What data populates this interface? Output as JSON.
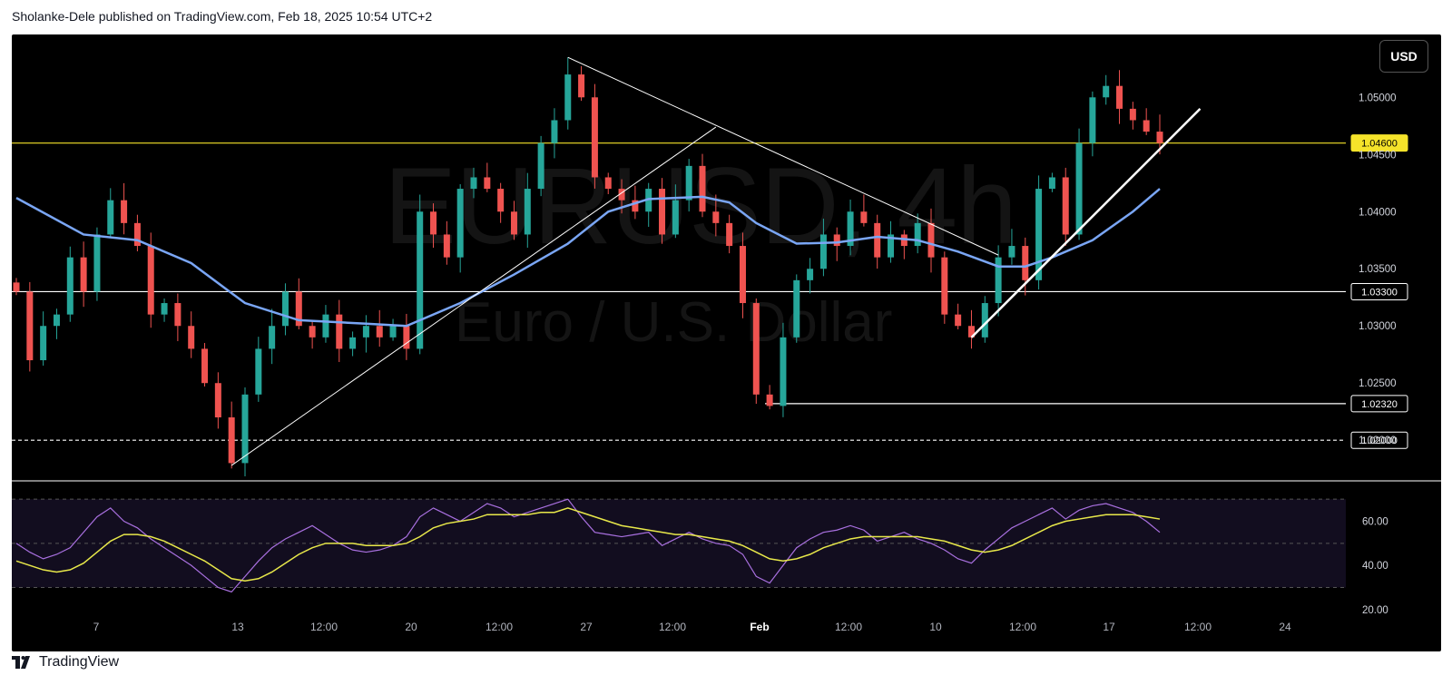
{
  "header": {
    "attribution": "Sholanke-Dele published on TradingView.com, Feb 18, 2025 10:54 UTC+2"
  },
  "toolbar": {
    "currency_button": "USD"
  },
  "watermark": {
    "symbol": "EURUSD, 4h",
    "description": "Euro / U.S. Dollar"
  },
  "footer": {
    "brand": "TradingView",
    "logo_icon": "tradingview-logo-icon"
  },
  "colors": {
    "up": "#26a69a",
    "down": "#ef5350",
    "ma": "#7aa6f5",
    "rsi": "#a970e0",
    "rsi_ma": "#e8e84a",
    "resistance": "#f5e32a"
  },
  "chart_data": [
    {
      "type": "candlestick",
      "symbol": "EURUSD",
      "timeframe": "4h",
      "ylim": [
        1.017,
        1.0555
      ],
      "y_ticks": [
        "1.05000",
        "1.04500",
        "1.04000",
        "1.03500",
        "1.03000",
        "1.02500",
        "1.02000"
      ],
      "x_ticks": [
        "7",
        "13",
        "12:00",
        "20",
        "12:00",
        "27",
        "12:00",
        "Feb",
        "12:00",
        "10",
        "12:00",
        "17",
        "12:00",
        "24"
      ],
      "price_levels": [
        {
          "value": 1.046,
          "label": "1.04600",
          "style": "solid",
          "color": "#f5e32a"
        },
        {
          "value": 1.033,
          "label": "1.03300",
          "style": "solid",
          "color": "#ffffff"
        },
        {
          "value": 1.0232,
          "label": "1.02320",
          "style": "solid",
          "color": "#ffffff"
        },
        {
          "value": 1.02,
          "label": "1.02000",
          "style": "dashed",
          "color": "#ffffff"
        }
      ],
      "close_path": [
        1.033,
        1.027,
        1.03,
        1.031,
        1.036,
        1.033,
        1.038,
        1.041,
        1.039,
        1.037,
        1.031,
        1.032,
        1.03,
        1.028,
        1.025,
        1.022,
        1.018,
        1.024,
        1.028,
        1.03,
        1.033,
        1.03,
        1.029,
        1.031,
        1.028,
        1.029,
        1.03,
        1.029,
        1.03,
        1.028,
        1.04,
        1.038,
        1.036,
        1.042,
        1.043,
        1.042,
        1.04,
        1.038,
        1.042,
        1.046,
        1.048,
        1.052,
        1.05,
        1.043,
        1.042,
        1.041,
        1.04,
        1.042,
        1.038,
        1.041,
        1.044,
        1.04,
        1.039,
        1.037,
        1.032,
        1.024,
        1.023,
        1.029,
        1.034,
        1.035,
        1.038,
        1.037,
        1.04,
        1.039,
        1.036,
        1.038,
        1.037,
        1.039,
        1.036,
        1.031,
        1.03,
        1.029,
        1.032,
        1.036,
        1.037,
        1.034,
        1.042,
        1.043,
        1.038,
        1.046,
        1.05,
        1.051,
        1.049,
        1.048,
        1.047,
        1.046
      ],
      "moving_average": {
        "start": 1.0412,
        "end": 1.042,
        "points": [
          [
            0,
            1.0412
          ],
          [
            5,
            1.038
          ],
          [
            9,
            1.0375
          ],
          [
            13,
            1.0355
          ],
          [
            17,
            1.032
          ],
          [
            21,
            1.0305
          ],
          [
            26,
            1.0302
          ],
          [
            29,
            1.03
          ],
          [
            33,
            1.032
          ],
          [
            37,
            1.0345
          ],
          [
            41,
            1.0372
          ],
          [
            44,
            1.04
          ],
          [
            47,
            1.0411
          ],
          [
            51,
            1.0413
          ],
          [
            53,
            1.0408
          ],
          [
            55,
            1.039
          ],
          [
            58,
            1.0372
          ],
          [
            61,
            1.0373
          ],
          [
            64,
            1.0378
          ],
          [
            67,
            1.0375
          ],
          [
            70,
            1.0365
          ],
          [
            73,
            1.0352
          ],
          [
            75,
            1.0352
          ],
          [
            77,
            1.036
          ],
          [
            80,
            1.0375
          ],
          [
            83,
            1.04
          ],
          [
            85,
            1.042
          ]
        ]
      },
      "trendlines": [
        {
          "from": [
            16,
            1.0178
          ],
          "to": [
            52,
            1.0474
          ],
          "color": "#ffffff",
          "width": 1
        },
        {
          "from": [
            41,
            1.0535
          ],
          "to": [
            73,
            1.0362
          ],
          "color": "#ffffff",
          "width": 1
        },
        {
          "from": [
            71,
            1.029
          ],
          "to": [
            88,
            1.049
          ],
          "color": "#ffffff",
          "width": 2.5
        }
      ]
    },
    {
      "type": "line",
      "name": "RSI",
      "ylim": [
        15,
        75
      ],
      "y_ticks": [
        "60.00",
        "40.00",
        "20.00"
      ],
      "bands": [
        70,
        50,
        30
      ],
      "series": [
        {
          "name": "RSI",
          "values": [
            50,
            46,
            43,
            45,
            48,
            55,
            62,
            66,
            60,
            57,
            52,
            48,
            44,
            40,
            35,
            30,
            28,
            35,
            42,
            48,
            52,
            55,
            58,
            54,
            50,
            47,
            46,
            47,
            49,
            53,
            62,
            66,
            63,
            60,
            64,
            68,
            66,
            62,
            64,
            66,
            68,
            70,
            62,
            55,
            54,
            53,
            54,
            55,
            49,
            52,
            55,
            52,
            50,
            49,
            45,
            35,
            32,
            40,
            48,
            52,
            55,
            56,
            58,
            56,
            51,
            53,
            55,
            52,
            50,
            47,
            43,
            41,
            47,
            52,
            57,
            60,
            63,
            66,
            61,
            65,
            67,
            68,
            66,
            64,
            60,
            55
          ]
        },
        {
          "name": "RSI-MA",
          "values": [
            42,
            40,
            38,
            37,
            38,
            41,
            46,
            51,
            54,
            54,
            53,
            51,
            48,
            45,
            42,
            38,
            34,
            33,
            34,
            37,
            41,
            45,
            48,
            50,
            50,
            50,
            49,
            49,
            49,
            50,
            53,
            57,
            59,
            60,
            61,
            63,
            63,
            63,
            63,
            64,
            64,
            66,
            64,
            62,
            60,
            58,
            57,
            56,
            55,
            54,
            54,
            53,
            52,
            51,
            49,
            46,
            43,
            42,
            43,
            45,
            48,
            50,
            52,
            53,
            53,
            53,
            53,
            53,
            52,
            51,
            49,
            47,
            46,
            47,
            49,
            52,
            55,
            58,
            60,
            61,
            62,
            63,
            63,
            63,
            62,
            61
          ]
        }
      ]
    }
  ]
}
